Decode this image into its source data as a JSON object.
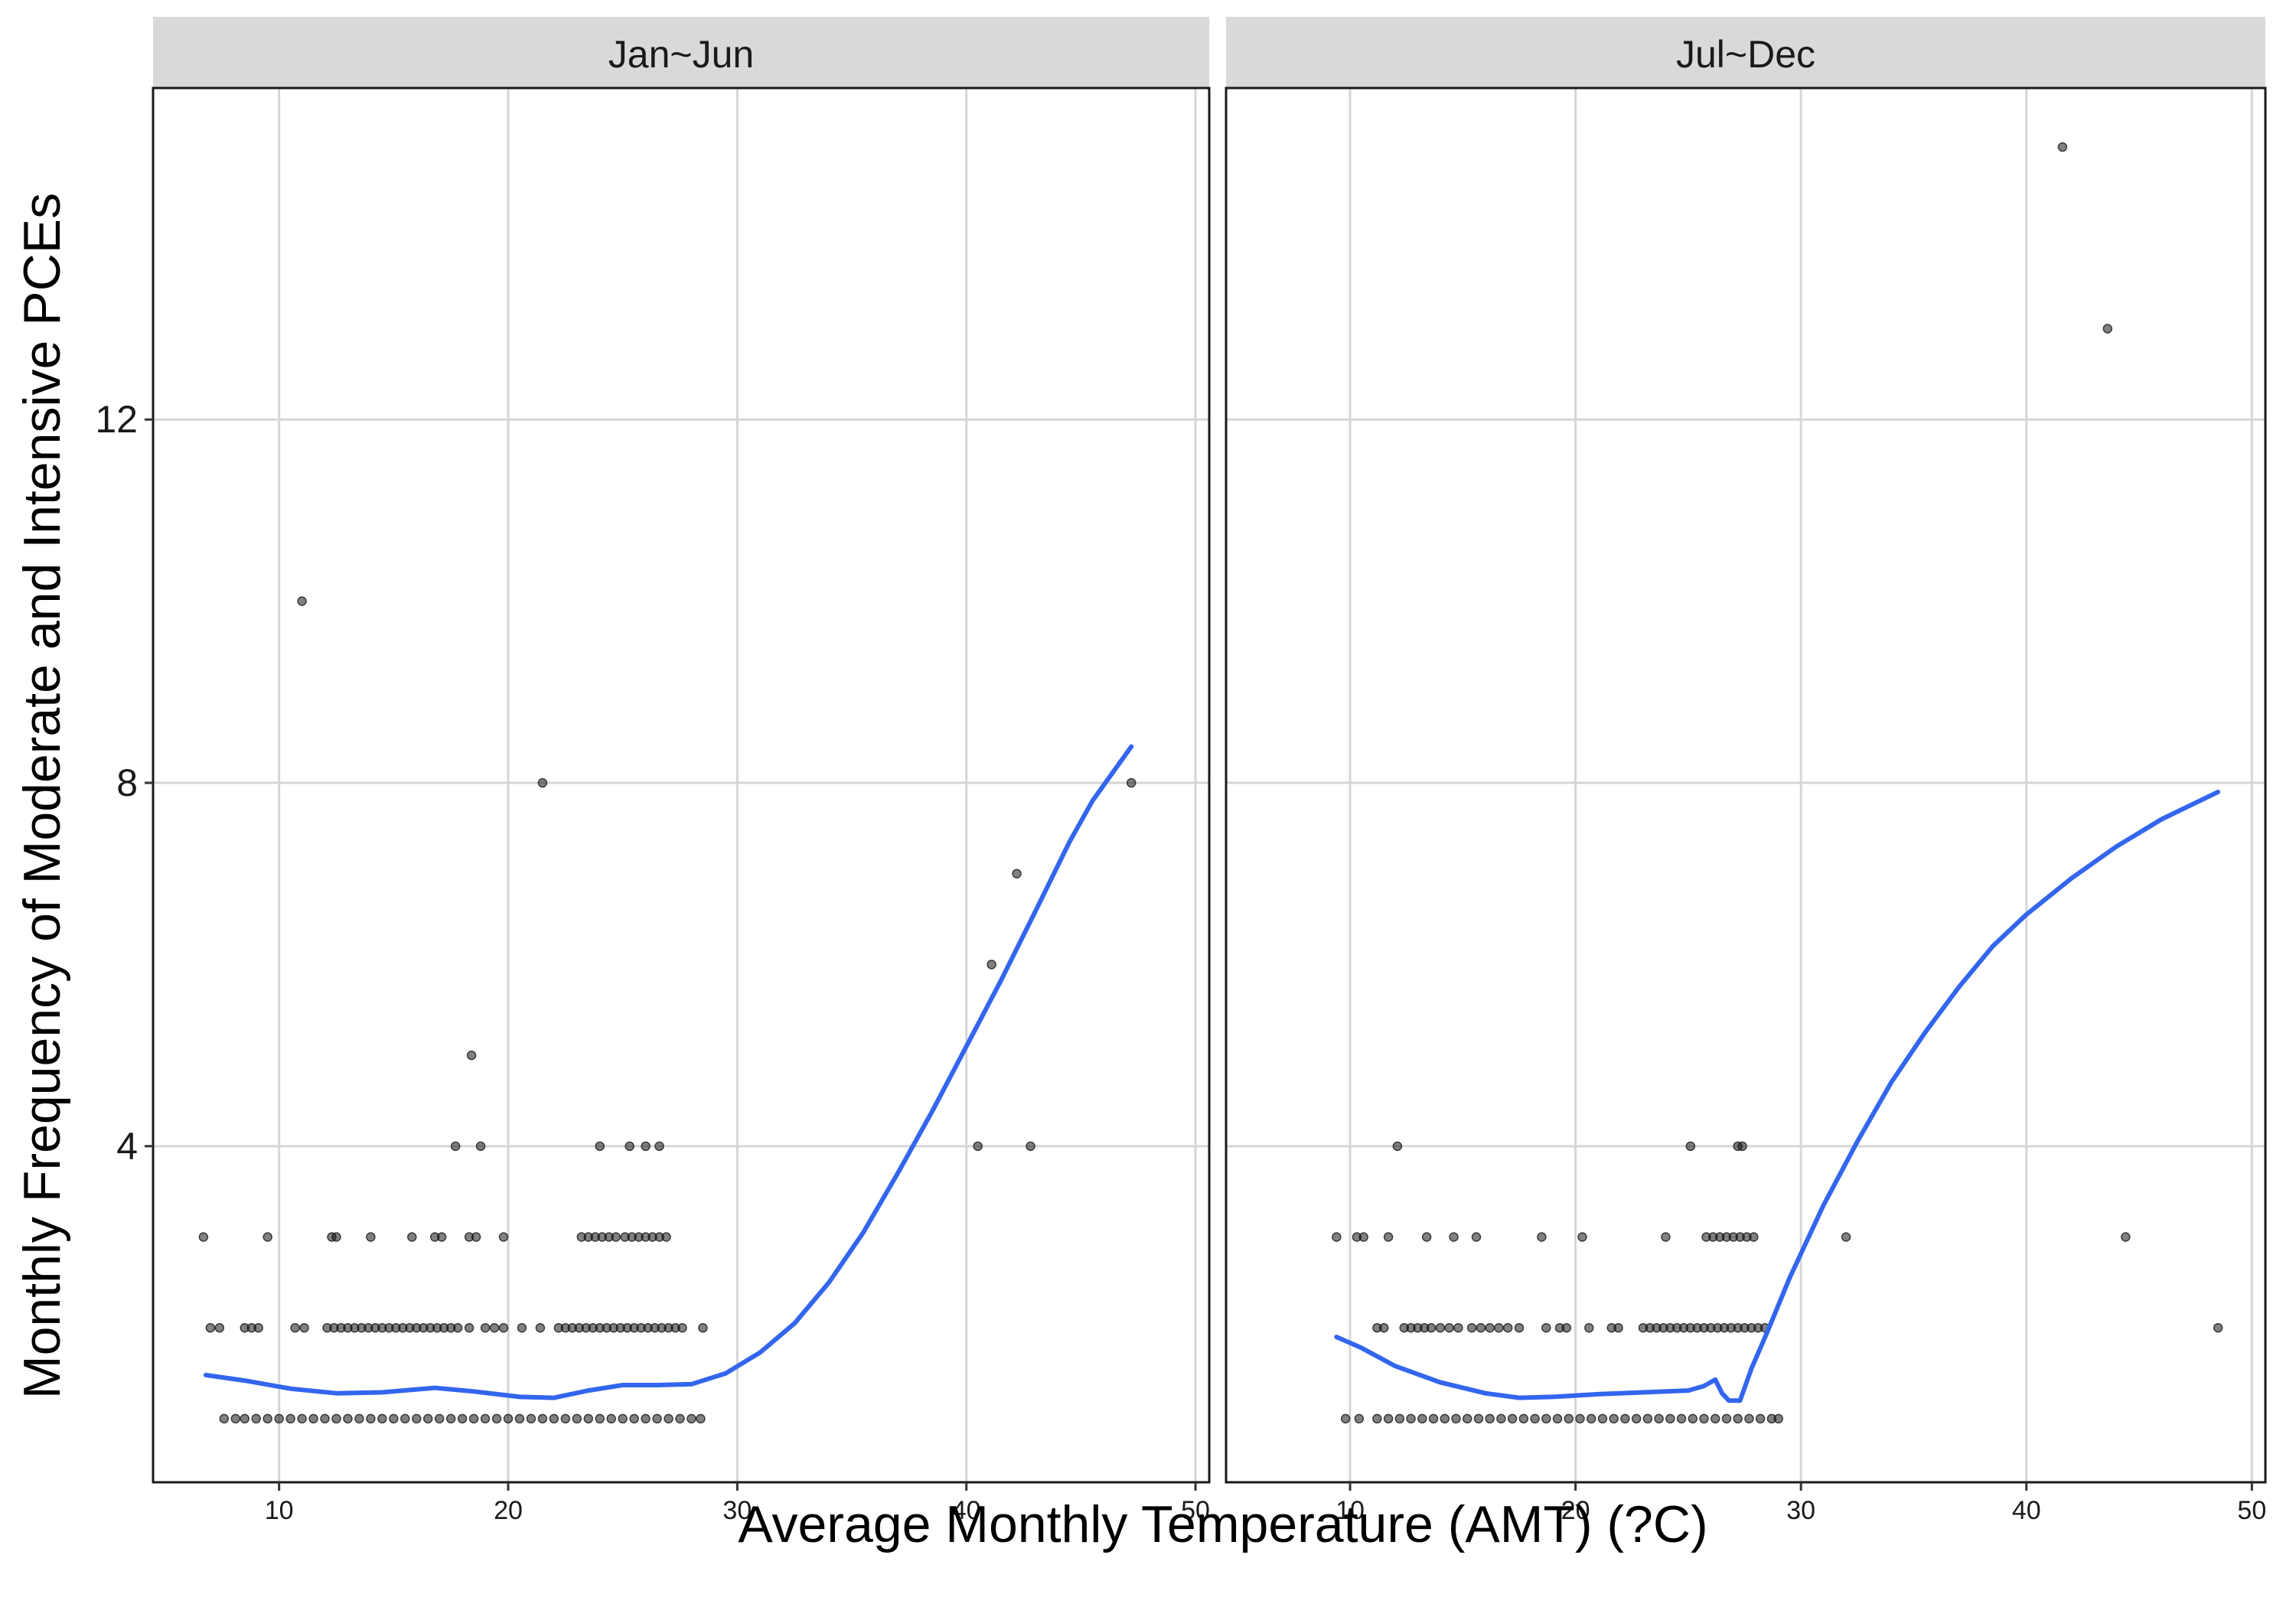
{
  "chart_data": {
    "type": "scatter",
    "xlabel": "Average Monthly Temperature (AMT) (?C)",
    "ylabel": "Monthly Frequency of Moderate and Intensive PCEs",
    "xlim": [
      4.5,
      50.6
    ],
    "ylim": [
      0.3,
      15.65
    ],
    "x_ticks": [
      10,
      20,
      30,
      40,
      50
    ],
    "y_ticks": [
      4,
      8,
      12
    ],
    "grid": true,
    "colors": {
      "points": "#1a1a1a",
      "smooth": "#3366ee",
      "strip": "#d9d9d9"
    },
    "panels": [
      {
        "strip": "Jan~Jun",
        "points": [
          [
            6.7,
            3
          ],
          [
            11.0,
            10
          ],
          [
            21.5,
            8
          ],
          [
            47.2,
            8
          ],
          [
            42.2,
            7
          ],
          [
            41.1,
            6
          ],
          [
            18.4,
            5
          ],
          [
            17.7,
            4
          ],
          [
            18.8,
            4
          ],
          [
            24.0,
            4
          ],
          [
            25.3,
            4
          ],
          [
            26.0,
            4
          ],
          [
            26.6,
            4
          ],
          [
            40.5,
            4
          ],
          [
            42.8,
            4
          ],
          [
            9.5,
            3
          ],
          [
            12.3,
            3
          ],
          [
            12.5,
            3
          ],
          [
            14.0,
            3
          ],
          [
            15.8,
            3
          ],
          [
            16.8,
            3
          ],
          [
            17.1,
            3
          ],
          [
            18.3,
            3
          ],
          [
            18.6,
            3
          ],
          [
            19.8,
            3
          ],
          [
            23.2,
            3
          ],
          [
            23.5,
            3
          ],
          [
            23.8,
            3
          ],
          [
            24.1,
            3
          ],
          [
            24.4,
            3
          ],
          [
            24.7,
            3
          ],
          [
            25.1,
            3
          ],
          [
            25.4,
            3
          ],
          [
            25.7,
            3
          ],
          [
            26.0,
            3
          ],
          [
            26.3,
            3
          ],
          [
            26.6,
            3
          ],
          [
            26.9,
            3
          ],
          [
            7.0,
            2
          ],
          [
            7.4,
            2
          ],
          [
            8.5,
            2
          ],
          [
            8.8,
            2
          ],
          [
            9.1,
            2
          ],
          [
            10.7,
            2
          ],
          [
            11.1,
            2
          ],
          [
            12.1,
            2
          ],
          [
            12.4,
            2
          ],
          [
            12.7,
            2
          ],
          [
            13.0,
            2
          ],
          [
            13.3,
            2
          ],
          [
            13.6,
            2
          ],
          [
            13.9,
            2
          ],
          [
            14.2,
            2
          ],
          [
            14.5,
            2
          ],
          [
            14.8,
            2
          ],
          [
            15.1,
            2
          ],
          [
            15.4,
            2
          ],
          [
            15.7,
            2
          ],
          [
            16.0,
            2
          ],
          [
            16.3,
            2
          ],
          [
            16.6,
            2
          ],
          [
            16.9,
            2
          ],
          [
            17.2,
            2
          ],
          [
            17.5,
            2
          ],
          [
            17.8,
            2
          ],
          [
            18.3,
            2
          ],
          [
            19.0,
            2
          ],
          [
            19.4,
            2
          ],
          [
            19.8,
            2
          ],
          [
            20.6,
            2
          ],
          [
            21.4,
            2
          ],
          [
            22.2,
            2
          ],
          [
            22.5,
            2
          ],
          [
            22.8,
            2
          ],
          [
            23.1,
            2
          ],
          [
            23.4,
            2
          ],
          [
            23.7,
            2
          ],
          [
            24.0,
            2
          ],
          [
            24.3,
            2
          ],
          [
            24.6,
            2
          ],
          [
            24.9,
            2
          ],
          [
            25.2,
            2
          ],
          [
            25.5,
            2
          ],
          [
            25.8,
            2
          ],
          [
            26.1,
            2
          ],
          [
            26.4,
            2
          ],
          [
            26.7,
            2
          ],
          [
            27.0,
            2
          ],
          [
            27.3,
            2
          ],
          [
            27.6,
            2
          ],
          [
            28.5,
            2
          ],
          [
            7.6,
            1
          ],
          [
            8.1,
            1
          ],
          [
            8.5,
            1
          ],
          [
            9.0,
            1
          ],
          [
            9.5,
            1
          ],
          [
            10.0,
            1
          ],
          [
            10.5,
            1
          ],
          [
            11.0,
            1
          ],
          [
            11.5,
            1
          ],
          [
            12.0,
            1
          ],
          [
            12.5,
            1
          ],
          [
            13.0,
            1
          ],
          [
            13.5,
            1
          ],
          [
            14.0,
            1
          ],
          [
            14.5,
            1
          ],
          [
            15.0,
            1
          ],
          [
            15.5,
            1
          ],
          [
            16.0,
            1
          ],
          [
            16.5,
            1
          ],
          [
            17.0,
            1
          ],
          [
            17.5,
            1
          ],
          [
            18.0,
            1
          ],
          [
            18.5,
            1
          ],
          [
            19.0,
            1
          ],
          [
            19.5,
            1
          ],
          [
            20.0,
            1
          ],
          [
            20.5,
            1
          ],
          [
            21.0,
            1
          ],
          [
            21.5,
            1
          ],
          [
            22.0,
            1
          ],
          [
            22.5,
            1
          ],
          [
            23.0,
            1
          ],
          [
            23.5,
            1
          ],
          [
            24.0,
            1
          ],
          [
            24.5,
            1
          ],
          [
            25.0,
            1
          ],
          [
            25.5,
            1
          ],
          [
            26.0,
            1
          ],
          [
            26.5,
            1
          ],
          [
            27.0,
            1
          ],
          [
            27.5,
            1
          ],
          [
            28.0,
            1
          ],
          [
            28.4,
            1
          ]
        ],
        "smooth": [
          [
            6.8,
            1.48
          ],
          [
            8.5,
            1.42
          ],
          [
            10.5,
            1.33
          ],
          [
            12.5,
            1.28
          ],
          [
            14.5,
            1.29
          ],
          [
            16.8,
            1.34
          ],
          [
            18.5,
            1.3
          ],
          [
            20.5,
            1.24
          ],
          [
            22.0,
            1.23
          ],
          [
            23.5,
            1.31
          ],
          [
            25.0,
            1.37
          ],
          [
            26.5,
            1.37
          ],
          [
            28.0,
            1.38
          ],
          [
            29.5,
            1.5
          ],
          [
            31.0,
            1.73
          ],
          [
            32.5,
            2.05
          ],
          [
            34.0,
            2.5
          ],
          [
            35.5,
            3.05
          ],
          [
            37.0,
            3.7
          ],
          [
            38.5,
            4.38
          ],
          [
            40.0,
            5.1
          ],
          [
            41.5,
            5.82
          ],
          [
            43.0,
            6.58
          ],
          [
            44.5,
            7.35
          ],
          [
            45.5,
            7.8
          ],
          [
            47.2,
            8.4
          ]
        ]
      },
      {
        "strip": "Jul~Dec",
        "points": [
          [
            41.6,
            15
          ],
          [
            43.6,
            13
          ],
          [
            12.1,
            4
          ],
          [
            25.1,
            4
          ],
          [
            27.2,
            4
          ],
          [
            27.4,
            4
          ],
          [
            9.4,
            3
          ],
          [
            10.3,
            3
          ],
          [
            10.6,
            3
          ],
          [
            11.7,
            3
          ],
          [
            13.4,
            3
          ],
          [
            14.6,
            3
          ],
          [
            15.6,
            3
          ],
          [
            18.5,
            3
          ],
          [
            20.3,
            3
          ],
          [
            24.0,
            3
          ],
          [
            25.8,
            3
          ],
          [
            26.1,
            3
          ],
          [
            26.4,
            3
          ],
          [
            26.7,
            3
          ],
          [
            27.0,
            3
          ],
          [
            27.3,
            3
          ],
          [
            27.6,
            3
          ],
          [
            27.9,
            3
          ],
          [
            32.0,
            3
          ],
          [
            44.4,
            3
          ],
          [
            11.2,
            2
          ],
          [
            11.5,
            2
          ],
          [
            12.4,
            2
          ],
          [
            12.7,
            2
          ],
          [
            13.0,
            2
          ],
          [
            13.3,
            2
          ],
          [
            13.6,
            2
          ],
          [
            14.0,
            2
          ],
          [
            14.4,
            2
          ],
          [
            14.8,
            2
          ],
          [
            15.4,
            2
          ],
          [
            15.8,
            2
          ],
          [
            16.2,
            2
          ],
          [
            16.6,
            2
          ],
          [
            17.0,
            2
          ],
          [
            17.5,
            2
          ],
          [
            18.7,
            2
          ],
          [
            19.3,
            2
          ],
          [
            19.6,
            2
          ],
          [
            20.6,
            2
          ],
          [
            21.6,
            2
          ],
          [
            21.9,
            2
          ],
          [
            23.0,
            2
          ],
          [
            23.3,
            2
          ],
          [
            23.6,
            2
          ],
          [
            23.9,
            2
          ],
          [
            24.2,
            2
          ],
          [
            24.5,
            2
          ],
          [
            24.8,
            2
          ],
          [
            25.1,
            2
          ],
          [
            25.4,
            2
          ],
          [
            25.7,
            2
          ],
          [
            26.0,
            2
          ],
          [
            26.3,
            2
          ],
          [
            26.6,
            2
          ],
          [
            26.9,
            2
          ],
          [
            27.2,
            2
          ],
          [
            27.5,
            2
          ],
          [
            27.8,
            2
          ],
          [
            28.1,
            2
          ],
          [
            28.4,
            2
          ],
          [
            48.5,
            2
          ],
          [
            9.8,
            1
          ],
          [
            10.4,
            1
          ],
          [
            11.2,
            1
          ],
          [
            11.7,
            1
          ],
          [
            12.2,
            1
          ],
          [
            12.7,
            1
          ],
          [
            13.2,
            1
          ],
          [
            13.7,
            1
          ],
          [
            14.2,
            1
          ],
          [
            14.7,
            1
          ],
          [
            15.2,
            1
          ],
          [
            15.7,
            1
          ],
          [
            16.2,
            1
          ],
          [
            16.7,
            1
          ],
          [
            17.2,
            1
          ],
          [
            17.7,
            1
          ],
          [
            18.2,
            1
          ],
          [
            18.7,
            1
          ],
          [
            19.2,
            1
          ],
          [
            19.7,
            1
          ],
          [
            20.2,
            1
          ],
          [
            20.7,
            1
          ],
          [
            21.2,
            1
          ],
          [
            21.7,
            1
          ],
          [
            22.2,
            1
          ],
          [
            22.7,
            1
          ],
          [
            23.2,
            1
          ],
          [
            23.7,
            1
          ],
          [
            24.2,
            1
          ],
          [
            24.7,
            1
          ],
          [
            25.2,
            1
          ],
          [
            25.7,
            1
          ],
          [
            26.2,
            1
          ],
          [
            26.7,
            1
          ],
          [
            27.2,
            1
          ],
          [
            27.7,
            1
          ],
          [
            28.2,
            1
          ],
          [
            28.7,
            1
          ],
          [
            29.0,
            1
          ]
        ],
        "smooth": [
          [
            9.4,
            1.9
          ],
          [
            10.5,
            1.78
          ],
          [
            12.0,
            1.58
          ],
          [
            14.0,
            1.4
          ],
          [
            16.0,
            1.28
          ],
          [
            17.5,
            1.23
          ],
          [
            19.0,
            1.24
          ],
          [
            21.0,
            1.27
          ],
          [
            23.0,
            1.29
          ],
          [
            25.0,
            1.31
          ],
          [
            25.7,
            1.36
          ],
          [
            26.2,
            1.43
          ],
          [
            26.5,
            1.28
          ],
          [
            26.8,
            1.2
          ],
          [
            27.3,
            1.2
          ],
          [
            27.8,
            1.55
          ],
          [
            28.5,
            1.95
          ],
          [
            29.5,
            2.55
          ],
          [
            31.0,
            3.35
          ],
          [
            32.5,
            4.05
          ],
          [
            34.0,
            4.7
          ],
          [
            35.5,
            5.25
          ],
          [
            37.0,
            5.75
          ],
          [
            38.5,
            6.2
          ],
          [
            40.0,
            6.55
          ],
          [
            42.0,
            6.95
          ],
          [
            44.0,
            7.3
          ],
          [
            46.0,
            7.6
          ],
          [
            48.5,
            7.9
          ]
        ]
      }
    ]
  }
}
